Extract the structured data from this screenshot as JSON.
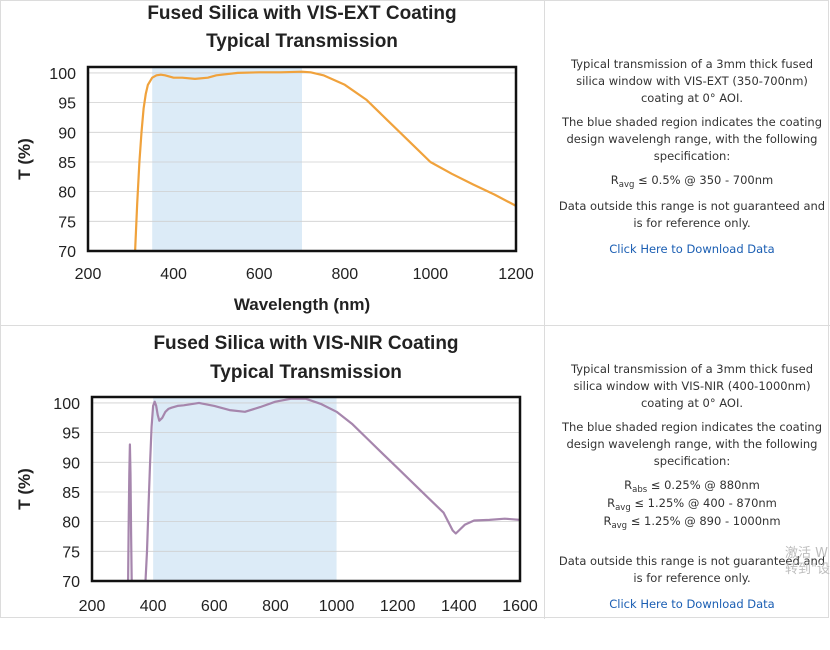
{
  "chart_data": [
    {
      "type": "line",
      "title_line1": "Fused Silica with VIS-EXT Coating",
      "title_line2": "Typical Transmission",
      "xlabel": "Wavelength (nm)",
      "ylabel": "T (%)",
      "xlim": [
        200,
        1200
      ],
      "ylim": [
        70,
        101
      ],
      "xticks": [
        200,
        400,
        600,
        800,
        1000,
        1200
      ],
      "yticks": [
        70,
        75,
        80,
        85,
        90,
        95,
        100
      ],
      "shaded_region": [
        350,
        700
      ],
      "colors": {
        "line": "#f0a23c",
        "shade": "#dcebf7"
      },
      "series": [
        {
          "x": [
            310,
            315,
            320,
            325,
            330,
            335,
            340,
            350,
            360,
            370,
            380,
            400,
            420,
            450,
            480,
            500,
            550,
            600,
            650,
            700,
            720,
            750,
            800,
            850,
            900,
            950,
            1000,
            1050,
            1100,
            1150,
            1200
          ],
          "y": [
            70,
            78,
            85,
            90,
            94,
            96.5,
            98,
            99.2,
            99.6,
            99.7,
            99.6,
            99.2,
            99.2,
            99,
            99.2,
            99.6,
            100,
            100.1,
            100.1,
            100.2,
            100.1,
            99.6,
            98,
            95.5,
            92,
            88.5,
            85,
            83,
            81.2,
            79.5,
            77.6
          ]
        }
      ]
    },
    {
      "type": "line",
      "title_line1": "Fused Silica with VIS-NIR Coating",
      "title_line2": "Typical Transmission",
      "xlabel": "",
      "ylabel": "T (%)",
      "xlim": [
        200,
        1600
      ],
      "ylim": [
        70,
        101
      ],
      "xticks": [
        200,
        400,
        600,
        800,
        1000,
        1200,
        1400,
        1600
      ],
      "yticks": [
        70,
        75,
        80,
        85,
        90,
        95,
        100
      ],
      "shaded_region": [
        400,
        1000
      ],
      "colors": {
        "line": "#a686ad",
        "shade": "#dcebf7"
      },
      "series": [
        {
          "x": [
            318,
            320,
            322,
            324,
            326,
            328,
            330,
            335,
            340,
            345,
            350,
            360,
            370,
            375,
            380,
            385,
            390,
            395,
            400,
            405,
            410,
            415,
            420,
            430,
            440,
            450,
            460,
            480,
            500,
            550,
            600,
            650,
            700,
            750,
            800,
            850,
            900,
            950,
            1000,
            1050,
            1100,
            1150,
            1200,
            1250,
            1300,
            1350,
            1370,
            1380,
            1390,
            1400,
            1420,
            1450,
            1500,
            1550,
            1600
          ],
          "y": [
            70,
            80,
            88,
            93,
            88,
            78,
            70,
            70,
            70,
            70,
            70,
            70,
            70,
            70,
            75,
            83,
            90,
            96,
            99.5,
            100.2,
            99.5,
            98,
            97,
            97.5,
            98.5,
            99,
            99.2,
            99.5,
            99.6,
            100,
            99.5,
            98.8,
            98.5,
            99.3,
            100.2,
            100.7,
            100.7,
            99.8,
            98.5,
            96.5,
            94,
            91.5,
            89,
            86.5,
            84,
            81.5,
            79.5,
            78.5,
            78,
            78.5,
            79.5,
            80.2,
            80.3,
            80.5,
            80.3
          ]
        }
      ]
    }
  ],
  "descriptions": [
    {
      "text1": "Typical transmission of a 3mm thick fused silica window with VIS-EXT (350-700nm) coating at 0° AOI.",
      "text2": "The blue shaded region indicates the coating design wavelengh range, with the following specification:",
      "specs": [
        {
          "sym": "R",
          "sub": "avg",
          "rest": " ≤ 0.5% @ 350 - 700nm"
        }
      ],
      "text3": "Data outside this range is not guaranteed and is for reference only.",
      "link": "Click Here to Download Data"
    },
    {
      "text1": "Typical transmission of a 3mm thick fused silica window with VIS-NIR (400-1000nm) coating at 0° AOI.",
      "text2": "The blue shaded region indicates the coating design wavelengh range, with the following specification:",
      "specs": [
        {
          "sym": "R",
          "sub": "abs",
          "rest": " ≤ 0.25% @ 880nm"
        },
        {
          "sym": "R",
          "sub": "avg",
          "rest": " ≤ 1.25% @ 400 - 870nm"
        },
        {
          "sym": "R",
          "sub": "avg",
          "rest": " ≤ 1.25% @ 890 - 1000nm"
        }
      ],
      "text3": "Data outside this range is not guaranteed and is for reference only.",
      "link": "Click Here to Download Data"
    }
  ],
  "watermark": {
    "line1": "激活 W",
    "line2": "转到\"设"
  }
}
